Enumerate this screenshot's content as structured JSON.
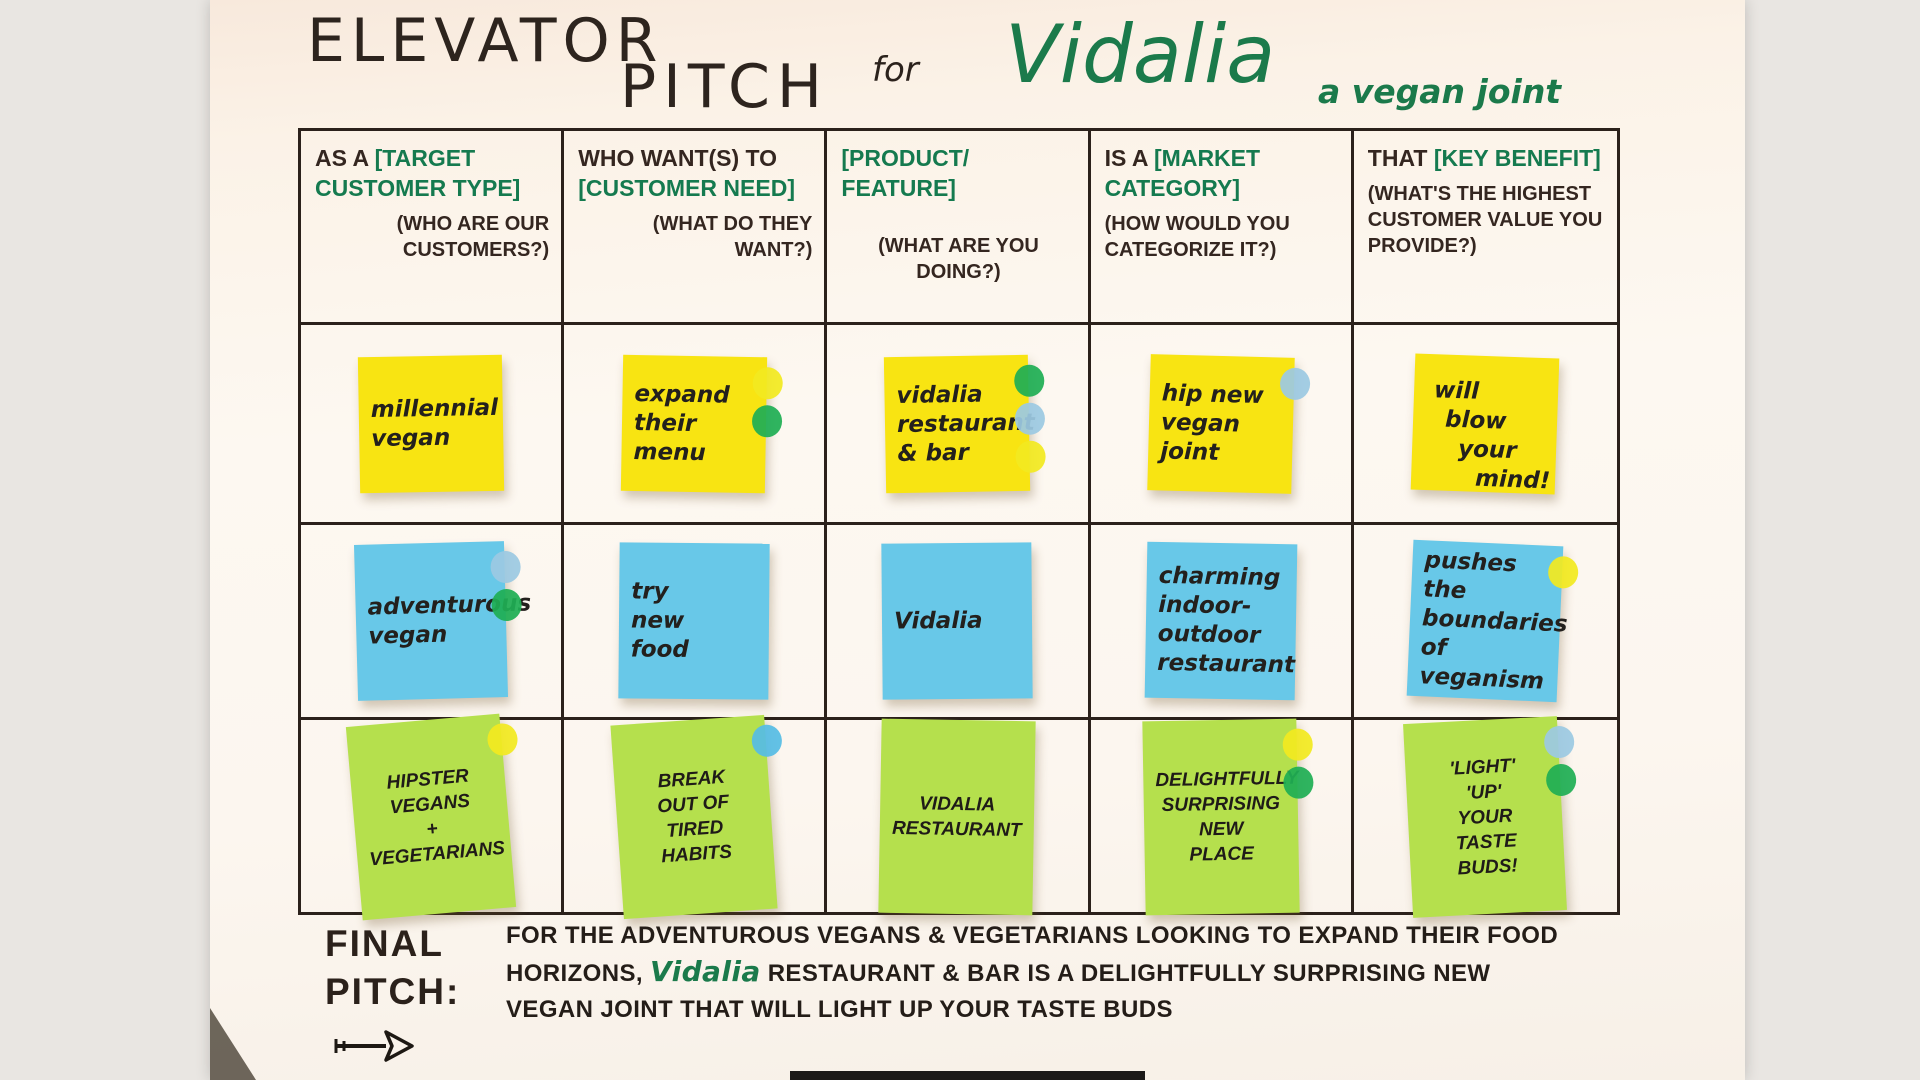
{
  "board": {
    "title_line1": "ELEVATOR",
    "title_line2": "PITCH",
    "title_for": "for",
    "brand": "Vidalia",
    "tagline": "a vegan joint"
  },
  "columns": [
    {
      "prefix": "AS A ",
      "bracket": "[TARGET CUSTOMER TYPE]",
      "question": "(WHO ARE OUR CUSTOMERS?)"
    },
    {
      "prefix": "WHO WANT(S) TO ",
      "bracket": "[CUSTOMER NEED]",
      "question": "(WHAT DO THEY WANT?)"
    },
    {
      "prefix": "",
      "bracket": "[PRODUCT/ FEATURE]",
      "question": "(WHAT ARE YOU DOING?)"
    },
    {
      "prefix": "IS A ",
      "bracket": "[MARKET CATEGORY]",
      "question": "(HOW WOULD YOU CATEGORIZE IT?)"
    },
    {
      "prefix": "THAT ",
      "bracket": "[KEY BENEFIT]",
      "question": "(WHAT'S THE HIGHEST CUSTOMER VALUE YOU PROVIDE?)"
    }
  ],
  "note_rows": [
    {
      "color": "note_yellow",
      "notes": [
        {
          "lines": [
            "millennial",
            "vegan"
          ],
          "dots": []
        },
        {
          "lines": [
            "expand",
            "their",
            "menu"
          ],
          "dots": [
            "yellow",
            "green"
          ]
        },
        {
          "lines": [
            "vidalia",
            "restaurant",
            "& bar"
          ],
          "dots": [
            "green",
            "blue",
            "yellow"
          ]
        },
        {
          "lines": [
            "hip new",
            "vegan",
            "joint"
          ],
          "dots": [
            "blue"
          ]
        },
        {
          "lines": [
            "will",
            "blow",
            "your",
            "mind!"
          ],
          "dots": [],
          "align": "stagger"
        }
      ]
    },
    {
      "color": "note_blue",
      "notes": [
        {
          "lines": [
            "adventurous",
            "vegan"
          ],
          "dots": [
            "blue",
            "green"
          ]
        },
        {
          "lines": [
            "try",
            "new",
            "food"
          ],
          "dots": []
        },
        {
          "lines": [
            "Vidalia"
          ],
          "dots": []
        },
        {
          "lines": [
            "charming",
            "indoor-",
            "outdoor",
            "restaurant"
          ],
          "dots": []
        },
        {
          "lines": [
            "pushes",
            "the",
            "boundaries",
            "of",
            "veganism"
          ],
          "dots": [
            "yellow"
          ]
        }
      ]
    },
    {
      "color": "note_green",
      "notes": [
        {
          "lines": [
            "HIPSTER",
            "VEGANS",
            "+",
            "VEGETARIANS"
          ],
          "dots": [
            "yellow"
          ]
        },
        {
          "lines": [
            "BREAK",
            "OUT OF",
            "TIRED",
            "HABITS"
          ],
          "dots": [
            "skyblue"
          ]
        },
        {
          "lines": [
            "VIDALIA",
            "RESTAURANT"
          ],
          "dots": []
        },
        {
          "lines": [
            "DELIGHTFULLY",
            "SURPRISING",
            "NEW",
            "PLACE"
          ],
          "dots": [
            "yellow",
            "green"
          ]
        },
        {
          "lines": [
            "'LIGHT'",
            "'UP'",
            "YOUR",
            "TASTE",
            "BUDS!"
          ],
          "dots": [
            "blue",
            "green"
          ]
        }
      ]
    }
  ],
  "final_pitch": {
    "label_line1": "FINAL",
    "label_line2": "PITCH:",
    "text_before": "FOR THE ADVENTUROUS VEGANS & VEGETARIANS LOOKING  TO EXPAND THEIR FOOD HORIZONS, ",
    "brand": "Vidalia",
    "text_after": " RESTAURANT & BAR  IS A DELIGHTFULLY SURPRISING NEW VEGAN JOINT THAT WILL LIGHT UP YOUR TASTE BUDS"
  },
  "colors": {
    "header_green": "#157a4f",
    "brand_green": "#1b7a4b",
    "ink": "#342620",
    "note_yellow": "#f8e412",
    "note_blue": "#68c8e8",
    "note_green": "#b5e04d",
    "dot_yellow": "#f2ea20",
    "dot_green": "#1fae54",
    "dot_blue": "#9cc9e2",
    "dot_skyblue": "#56bce4"
  }
}
